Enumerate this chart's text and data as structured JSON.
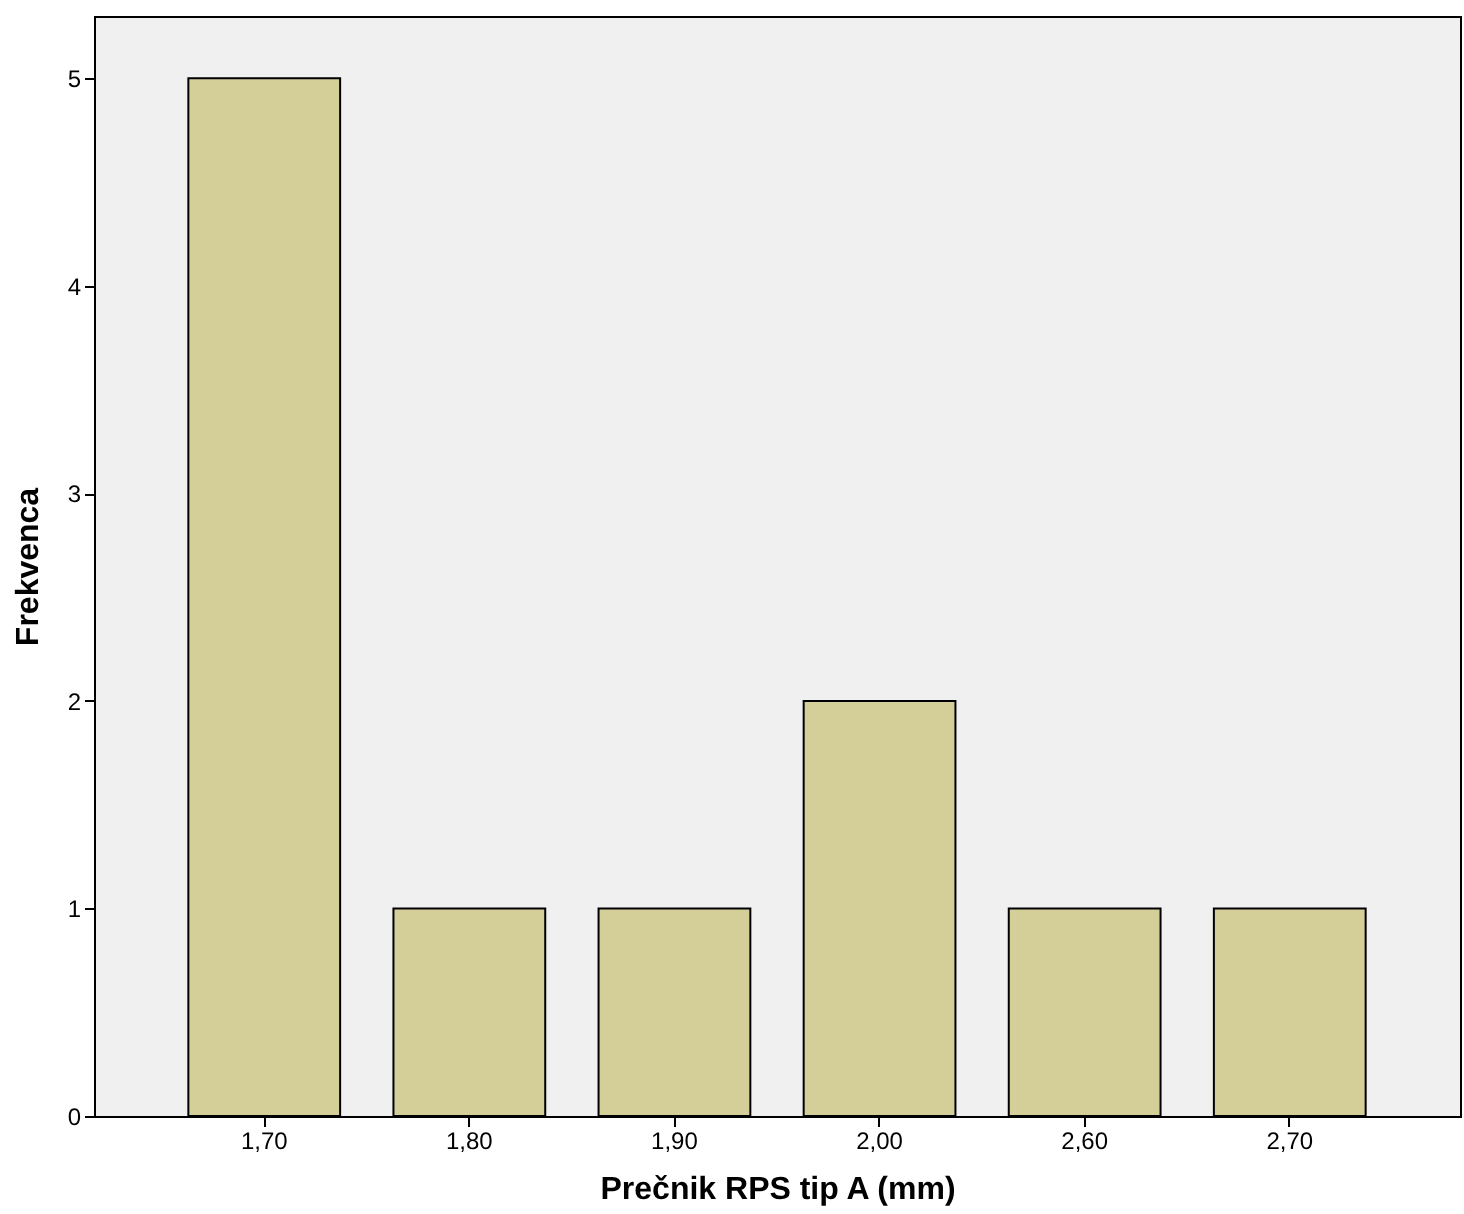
{
  "chart_data": {
    "type": "bar",
    "xlabel": "Prečnik RPS tip A (mm)",
    "ylabel": "Frekvenca",
    "categories": [
      "1,70",
      "1,80",
      "1,90",
      "2,00",
      "2,60",
      "2,70"
    ],
    "values": [
      5,
      1,
      1,
      2,
      1,
      1
    ],
    "color": "#d4cf98",
    "ylim": [
      0,
      5.3
    ],
    "yticks": [
      0,
      1,
      2,
      3,
      4,
      5
    ],
    "grid": false
  }
}
